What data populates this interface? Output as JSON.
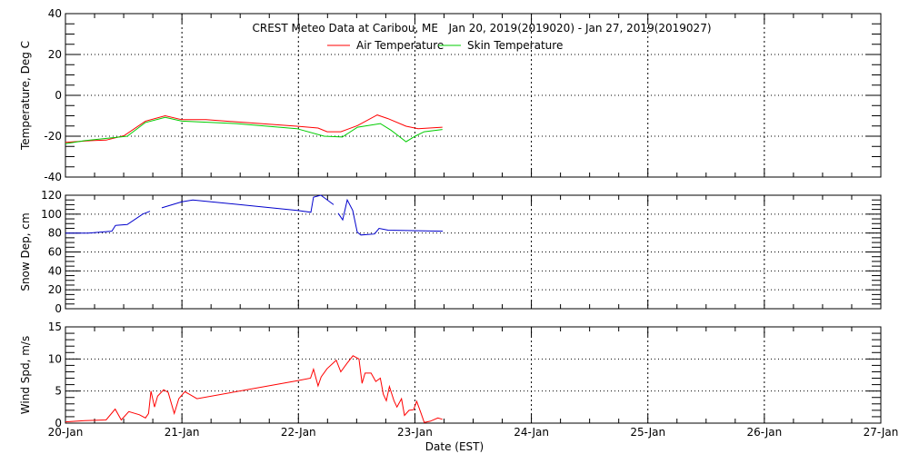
{
  "chart_data": [
    {
      "type": "line",
      "title": "CREST Meteo Data at Caribou, ME   Jan 20, 2019(2019020) - Jan 27, 2019(2019027)",
      "ylabel": "Temperature, Deg C",
      "ylim": [
        -40,
        40
      ],
      "yticks": [
        -40,
        -20,
        0,
        20,
        40
      ],
      "yminor": 5,
      "ygrid": [
        -20,
        0,
        20
      ],
      "legend": "top-center",
      "series": [
        {
          "name": "Air Temperature",
          "color": "#ff0000",
          "points": [
            [
              0,
              -23
            ],
            [
              0.219,
              -22.2
            ],
            [
              0.349,
              -21.9
            ],
            [
              0.505,
              -19.7
            ],
            [
              0.687,
              -12.6
            ],
            [
              0.856,
              -10
            ],
            [
              0.999,
              -11.9
            ],
            [
              1.207,
              -11.9
            ],
            [
              1.987,
              -15.1
            ],
            [
              2.169,
              -16
            ],
            [
              2.247,
              -17.8
            ],
            [
              2.364,
              -17.8
            ],
            [
              2.507,
              -14.8
            ],
            [
              2.677,
              -9.6
            ],
            [
              2.768,
              -11.4
            ],
            [
              2.924,
              -15.1
            ],
            [
              3.028,
              -16.3
            ],
            [
              3.236,
              -15.6
            ]
          ]
        },
        {
          "name": "Skin Temperature",
          "color": "#00cc00",
          "points": [
            [
              0,
              -23.7
            ],
            [
              0.166,
              -22.2
            ],
            [
              0.531,
              -20
            ],
            [
              0.687,
              -13.3
            ],
            [
              0.856,
              -10.8
            ],
            [
              0.999,
              -12.6
            ],
            [
              1.467,
              -13.8
            ],
            [
              1.987,
              -16.3
            ],
            [
              2.221,
              -20
            ],
            [
              2.377,
              -20.4
            ],
            [
              2.507,
              -15.6
            ],
            [
              2.703,
              -13.8
            ],
            [
              2.794,
              -17
            ],
            [
              2.846,
              -19.3
            ],
            [
              2.924,
              -22.7
            ],
            [
              3.002,
              -20
            ],
            [
              3.08,
              -17.8
            ],
            [
              3.236,
              -16.7
            ]
          ]
        }
      ]
    },
    {
      "type": "line",
      "ylabel": "Snow Dep, cm",
      "ylim": [
        0,
        120
      ],
      "yticks": [
        0,
        20,
        40,
        60,
        80,
        100,
        120
      ],
      "yminor": 5,
      "ygrid": [
        20,
        40,
        60,
        80,
        100
      ],
      "series": [
        {
          "name": "Snow Depth",
          "color": "#0000cc",
          "points": [
            [
              0,
              80
            ],
            [
              0.195,
              80
            ],
            [
              0.398,
              82
            ],
            [
              0.429,
              88
            ],
            [
              0.531,
              89
            ],
            [
              0.663,
              100
            ],
            [
              0.726,
              103
            ],
            null,
            [
              0.827,
              106.7
            ],
            [
              0.999,
              113
            ],
            [
              1.093,
              115
            ],
            [
              1.99,
              104
            ],
            [
              2.107,
              102
            ],
            [
              2.13,
              118
            ],
            [
              2.193,
              120
            ],
            [
              2.302,
              110
            ],
            null,
            [
              2.341,
              101
            ],
            [
              2.38,
              94
            ],
            [
              2.419,
              115
            ],
            [
              2.466,
              104
            ],
            [
              2.505,
              81
            ],
            [
              2.536,
              78
            ],
            [
              2.653,
              79
            ],
            [
              2.692,
              85
            ],
            [
              2.77,
              83
            ],
            [
              3.239,
              82
            ]
          ]
        }
      ]
    },
    {
      "type": "line",
      "ylabel": "Wind Spd, m/s",
      "xlabel": "Date (EST)",
      "ylim": [
        0,
        15
      ],
      "yticks": [
        0,
        5,
        10,
        15
      ],
      "yminor": 1,
      "ygrid": [
        5,
        10
      ],
      "series": [
        {
          "name": "Wind Speed",
          "color": "#ff0000",
          "points": [
            [
              0,
              0.2
            ],
            [
              0.166,
              0.4
            ],
            [
              0.349,
              0.5
            ],
            [
              0.427,
              2.2
            ],
            [
              0.479,
              0.5
            ],
            [
              0.544,
              1.8
            ],
            [
              0.635,
              1.3
            ],
            [
              0.687,
              0.8
            ],
            [
              0.713,
              1.5
            ],
            [
              0.734,
              5.0
            ],
            [
              0.765,
              2.5
            ],
            [
              0.791,
              4.2
            ],
            [
              0.843,
              5.2
            ],
            [
              0.882,
              4.8
            ],
            [
              0.934,
              1.5
            ],
            [
              0.973,
              3.8
            ],
            [
              1.025,
              4.9
            ],
            [
              1.064,
              4.5
            ],
            [
              1.129,
              3.8
            ],
            [
              1.987,
              6.6
            ],
            [
              2.104,
              7.0
            ],
            [
              2.13,
              8.4
            ],
            [
              2.169,
              5.8
            ],
            [
              2.195,
              7.2
            ],
            [
              2.247,
              8.5
            ],
            [
              2.325,
              9.8
            ],
            [
              2.364,
              8.0
            ],
            [
              2.416,
              9.3
            ],
            [
              2.468,
              10.5
            ],
            [
              2.52,
              10.0
            ],
            [
              2.546,
              6.2
            ],
            [
              2.572,
              7.8
            ],
            [
              2.624,
              7.8
            ],
            [
              2.664,
              6.5
            ],
            [
              2.703,
              7.0
            ],
            [
              2.729,
              4.5
            ],
            [
              2.755,
              3.5
            ],
            [
              2.781,
              5.7
            ],
            [
              2.82,
              3.5
            ],
            [
              2.846,
              2.5
            ],
            [
              2.885,
              3.8
            ],
            [
              2.911,
              1.2
            ],
            [
              2.95,
              2.0
            ],
            [
              2.989,
              2.1
            ],
            [
              3.015,
              3.4
            ],
            [
              3.054,
              1.5
            ],
            [
              3.08,
              0.1
            ],
            [
              3.132,
              0.3
            ],
            [
              3.197,
              0.8
            ],
            [
              3.236,
              0.6
            ]
          ]
        }
      ]
    }
  ],
  "x_axis": {
    "xlim": [
      0,
      7
    ],
    "tick_labels": [
      "20-Jan",
      "21-Jan",
      "22-Jan",
      "23-Jan",
      "24-Jan",
      "25-Jan",
      "26-Jan",
      "27-Jan"
    ],
    "minor_per_day": 4
  }
}
